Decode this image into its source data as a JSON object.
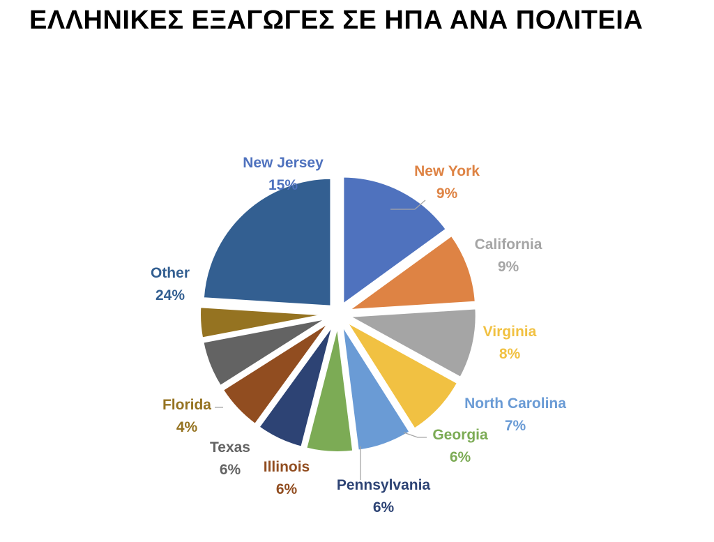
{
  "title": "ΕΛΛΗΝΙΚΕΣ ΕΞΑΓΩΓΕΣ ΣΕ ΗΠΑ ΑΝΑ ΠΟΛΙΤΕΙΑ",
  "chart_data": {
    "type": "pie",
    "title": "ΕΛΛΗΝΙΚΕΣ ΕΞΑΓΩΓΕΣ ΣΕ ΗΠΑ ΑΝΑ ΠΟΛΙΤΕΙΑ",
    "unit": "%",
    "exploded": true,
    "slices": [
      {
        "name": "New Jersey",
        "value": 15,
        "label": "15%",
        "color": "#4F72BE"
      },
      {
        "name": "New York",
        "value": 9,
        "label": "9%",
        "color": "#DE8344"
      },
      {
        "name": "California",
        "value": 9,
        "label": "9%",
        "color": "#A5A5A5"
      },
      {
        "name": "Virginia",
        "value": 8,
        "label": "8%",
        "color": "#F1C142"
      },
      {
        "name": "North Carolina",
        "value": 7,
        "label": "7%",
        "color": "#6A9BD5"
      },
      {
        "name": "Georgia",
        "value": 6,
        "label": "6%",
        "color": "#7CAB55"
      },
      {
        "name": "Pennsylvania",
        "value": 6,
        "label": "6%",
        "color": "#2D4374"
      },
      {
        "name": "Illinois",
        "value": 6,
        "label": "6%",
        "color": "#914D20"
      },
      {
        "name": "Texas",
        "value": 6,
        "label": "6%",
        "color": "#636363"
      },
      {
        "name": "Florida",
        "value": 4,
        "label": "4%",
        "color": "#957321"
      },
      {
        "name": "Other",
        "value": 24,
        "label": "24%",
        "color": "#335F91"
      }
    ]
  }
}
